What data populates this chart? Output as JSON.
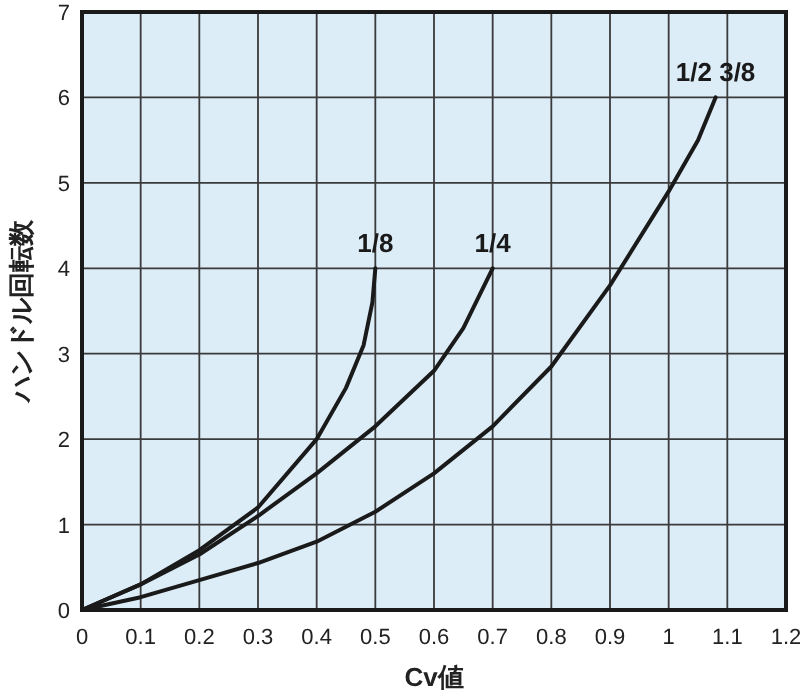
{
  "chart_data": {
    "type": "line",
    "xlabel": "Cv値",
    "ylabel": "ハンドル回転数",
    "xlim": [
      0,
      1.2
    ],
    "ylim": [
      0,
      7
    ],
    "xticks": [
      0,
      0.1,
      0.2,
      0.3,
      0.4,
      0.5,
      0.6,
      0.7,
      0.8,
      0.9,
      1,
      1.1,
      1.2
    ],
    "yticks": [
      0,
      1,
      2,
      3,
      4,
      5,
      6,
      7
    ],
    "grid": true,
    "legend": false,
    "marker": "none",
    "line_style": "solid",
    "series": [
      {
        "name": "1/8",
        "color": "#1a1a1a",
        "x": [
          0,
          0.1,
          0.2,
          0.3,
          0.4,
          0.45,
          0.48,
          0.495,
          0.5
        ],
        "values": [
          0,
          0.3,
          0.7,
          1.2,
          2.0,
          2.6,
          3.1,
          3.6,
          4.0
        ]
      },
      {
        "name": "1/4",
        "color": "#1a1a1a",
        "x": [
          0,
          0.1,
          0.2,
          0.3,
          0.4,
          0.5,
          0.6,
          0.65,
          0.7
        ],
        "values": [
          0,
          0.3,
          0.65,
          1.1,
          1.6,
          2.15,
          2.8,
          3.3,
          4.0
        ]
      },
      {
        "name": "1/2 3/8",
        "color": "#1a1a1a",
        "x": [
          0,
          0.1,
          0.2,
          0.3,
          0.4,
          0.5,
          0.6,
          0.7,
          0.8,
          0.9,
          1.0,
          1.05,
          1.08
        ],
        "values": [
          0,
          0.15,
          0.35,
          0.55,
          0.8,
          1.15,
          1.6,
          2.15,
          2.85,
          3.8,
          4.9,
          5.5,
          6.0
        ]
      }
    ]
  }
}
